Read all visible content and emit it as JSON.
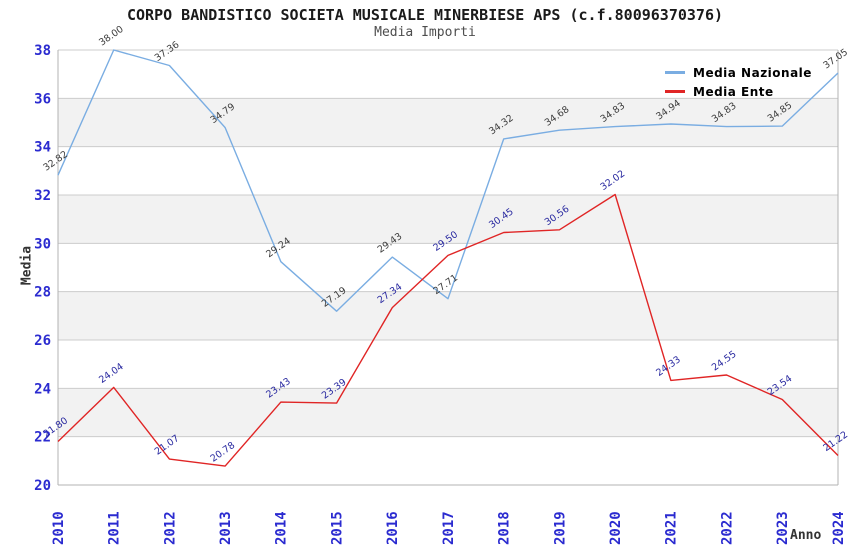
{
  "title": "CORPO BANDISTICO SOCIETA MUSICALE MINERBIESE APS (c.f.80096370376)",
  "subtitle": "Media Importi",
  "chart_data": {
    "type": "line",
    "title": "CORPO BANDISTICO SOCIETA MUSICALE MINERBIESE APS (c.f.80096370376)",
    "subtitle": "Media Importi",
    "xlabel": "Anno",
    "ylabel": "Media",
    "x": [
      "2010",
      "2011",
      "2012",
      "2013",
      "2014",
      "2015",
      "2016",
      "2017",
      "2018",
      "2019",
      "2020",
      "2021",
      "2022",
      "2023",
      "2024"
    ],
    "series": [
      {
        "name": "Media Nazionale",
        "color": "#7aade2",
        "label_color": "#3d3d3d",
        "values": [
          32.82,
          38.0,
          37.36,
          34.79,
          29.24,
          27.19,
          29.43,
          27.71,
          34.32,
          34.68,
          34.83,
          34.94,
          34.83,
          34.85,
          37.05
        ]
      },
      {
        "name": "Media Ente",
        "color": "#e02525",
        "label_color": "#2929a0",
        "values": [
          21.8,
          24.04,
          21.07,
          20.78,
          23.43,
          23.39,
          27.34,
          29.5,
          30.45,
          30.56,
          32.02,
          24.33,
          24.55,
          23.54,
          21.22
        ]
      }
    ],
    "ylim": [
      20,
      38
    ],
    "ytick_step": 2,
    "grid": true,
    "legend_position": "top-right",
    "band_color": "#f2f2f2",
    "gridline_color": "#cccccc",
    "frame_color": "#b3b3b3",
    "tick_color": "#2b2bd0"
  }
}
